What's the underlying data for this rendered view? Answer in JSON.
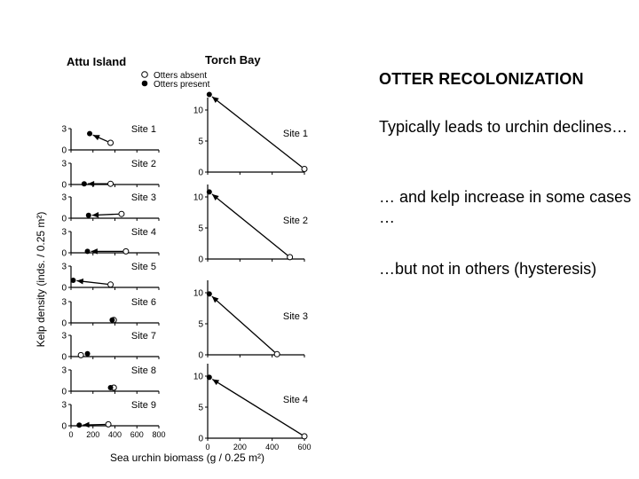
{
  "slide": {
    "heading": "OTTER RECOLONIZATION",
    "bullets": [
      "Typically leads to urchin declines…",
      "… and kelp increase in some cases …",
      "…but not in others (hysteresis)"
    ]
  },
  "chart_data": [
    {
      "type": "scatter",
      "title": "Attu Island",
      "xlabel": "Sea urchin biomass (g / 0.25 m²)",
      "ylabel": "Kelp density (inds. / 0.25 m²)",
      "xlim": [
        0,
        800
      ],
      "ylim": [
        0,
        3
      ],
      "xticks": [
        "0",
        "200",
        "400",
        "600",
        "800"
      ],
      "yticks": [
        "0",
        "3"
      ],
      "legend": {
        "placement": "top",
        "entries": [
          "Otters absent",
          "Otters present"
        ]
      },
      "panels": [
        {
          "label": "Site 1",
          "absent": [
            360,
            1.0
          ],
          "present": [
            170,
            2.3
          ]
        },
        {
          "label": "Site 2",
          "absent": [
            360,
            0.1
          ],
          "present": [
            120,
            0.1
          ]
        },
        {
          "label": "Site 3",
          "absent": [
            460,
            0.6
          ],
          "present": [
            160,
            0.4
          ]
        },
        {
          "label": "Site 4",
          "absent": [
            500,
            0.2
          ],
          "present": [
            150,
            0.2
          ]
        },
        {
          "label": "Site 5",
          "absent": [
            360,
            0.4
          ],
          "present": [
            20,
            1.0
          ]
        },
        {
          "label": "Site 6",
          "absent": [
            390,
            0.4
          ],
          "present": [
            375,
            0.4
          ]
        },
        {
          "label": "Site 7",
          "absent": [
            90,
            0.2
          ],
          "present": [
            150,
            0.4
          ]
        },
        {
          "label": "Site 8",
          "absent": [
            390,
            0.5
          ],
          "present": [
            360,
            0.5
          ]
        },
        {
          "label": "Site 9",
          "absent": [
            340,
            0.2
          ],
          "present": [
            75,
            0.1
          ]
        }
      ]
    },
    {
      "type": "scatter",
      "title": "Torch Bay",
      "xlim": [
        0,
        600
      ],
      "ylim": [
        0,
        12
      ],
      "xticks": [
        "0",
        "200",
        "400",
        "600"
      ],
      "yticks": [
        "0",
        "5",
        "10"
      ],
      "panels": [
        {
          "label": "Site 1",
          "absent": [
            600,
            0.5
          ],
          "present": [
            10,
            12.5
          ]
        },
        {
          "label": "Site 2",
          "absent": [
            510,
            0.3
          ],
          "present": [
            10,
            10.8
          ]
        },
        {
          "label": "Site 3",
          "absent": [
            430,
            0.1
          ],
          "present": [
            10,
            9.8
          ]
        },
        {
          "label": "Site 4",
          "absent": [
            600,
            0.3
          ],
          "present": [
            10,
            9.8
          ]
        }
      ]
    }
  ]
}
